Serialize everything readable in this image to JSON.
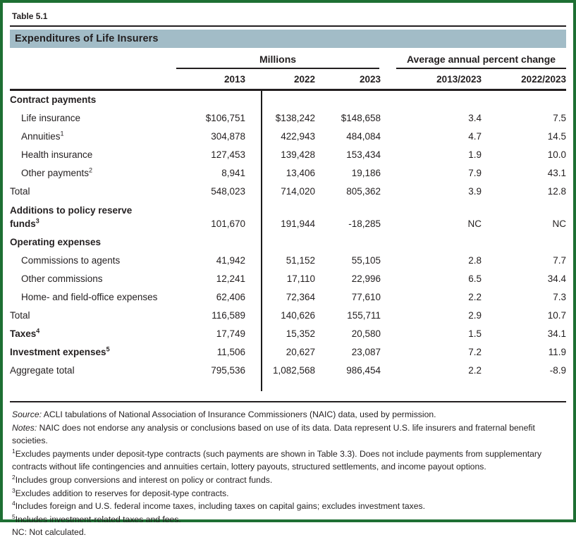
{
  "table_number": "Table 5.1",
  "title": "Expenditures of Life Insurers",
  "header": {
    "group_millions": "Millions",
    "group_avg": "Average annual percent change",
    "years": [
      "2013",
      "2022",
      "2023"
    ],
    "avg_cols": [
      "2013/2023",
      "2022/2023"
    ]
  },
  "rows": [
    {
      "type": "section",
      "label": "Contract payments"
    },
    {
      "type": "item",
      "label": "Life insurance",
      "values": [
        "$106,751",
        "$138,242",
        "$148,658",
        "3.4",
        "7.5"
      ]
    },
    {
      "type": "item",
      "label": "Annuities",
      "sup": "1",
      "values": [
        "304,878",
        "422,943",
        "484,084",
        "4.7",
        "14.5"
      ]
    },
    {
      "type": "item",
      "label": "Health insurance",
      "values": [
        "127,453",
        "139,428",
        "153,434",
        "1.9",
        "10.0"
      ]
    },
    {
      "type": "item",
      "label": "Other payments",
      "sup": "2",
      "values": [
        "8,941",
        "13,406",
        "19,186",
        "7.9",
        "43.1"
      ]
    },
    {
      "type": "total",
      "label": "Total",
      "values": [
        "548,023",
        "714,020",
        "805,362",
        "3.9",
        "12.8"
      ]
    },
    {
      "type": "bold",
      "label": "Additions to policy reserve\nfunds",
      "sup": "3",
      "values": [
        "101,670",
        "191,944",
        "-18,285",
        "NC",
        "NC"
      ]
    },
    {
      "type": "section",
      "label": "Operating expenses"
    },
    {
      "type": "item",
      "label": "Commissions to agents",
      "values": [
        "41,942",
        "51,152",
        "55,105",
        "2.8",
        "7.7"
      ]
    },
    {
      "type": "item",
      "label": "Other commissions",
      "values": [
        "12,241",
        "17,110",
        "22,996",
        "6.5",
        "34.4"
      ]
    },
    {
      "type": "item",
      "label": "Home- and field-office expenses",
      "values": [
        "62,406",
        "72,364",
        "77,610",
        "2.2",
        "7.3"
      ]
    },
    {
      "type": "total",
      "label": "Total",
      "values": [
        "116,589",
        "140,626",
        "155,711",
        "2.9",
        "10.7"
      ]
    },
    {
      "type": "bold",
      "label": "Taxes",
      "sup": "4",
      "values": [
        "17,749",
        "15,352",
        "20,580",
        "1.5",
        "34.1"
      ]
    },
    {
      "type": "bold",
      "label": "Investment expenses",
      "sup": "5",
      "values": [
        "11,506",
        "20,627",
        "23,087",
        "7.2",
        "11.9"
      ]
    },
    {
      "type": "total",
      "label": "Aggregate total",
      "values": [
        "795,536",
        "1,082,568",
        "986,454",
        "2.2",
        "-8.9"
      ]
    }
  ],
  "footnotes": [
    {
      "lead": "Source:",
      "text": " ACLI tabulations of National Association of Insurance Commissioners (NAIC) data, used by permission."
    },
    {
      "lead": "Notes:",
      "text": " NAIC does not endorse any analysis or conclusions based on use of its data. Data represent U.S. life insurers and fraternal benefit societies."
    },
    {
      "sup": "1",
      "text": "Excludes payments under deposit-type contracts (such payments are shown in Table 3.3). Does not include payments from supplementary contracts without life contingencies and annuities certain, lottery payouts, structured settlements, and income payout options."
    },
    {
      "sup": "2",
      "text": "Includes group conversions and interest on policy or contract funds."
    },
    {
      "sup": "3",
      "text": "Excludes addition to reserves for deposit-type contracts."
    },
    {
      "sup": "4",
      "text": "Includes foreign and U.S. federal income taxes, including taxes on capital gains; excludes investment taxes."
    },
    {
      "sup": "5",
      "text": "Includes investment-related taxes and fees."
    },
    {
      "text": "NC: Not calculated."
    }
  ],
  "colors": {
    "frame_border": "#1e6f33",
    "banner_background": "#a2bcc7",
    "text": "#231f20"
  }
}
